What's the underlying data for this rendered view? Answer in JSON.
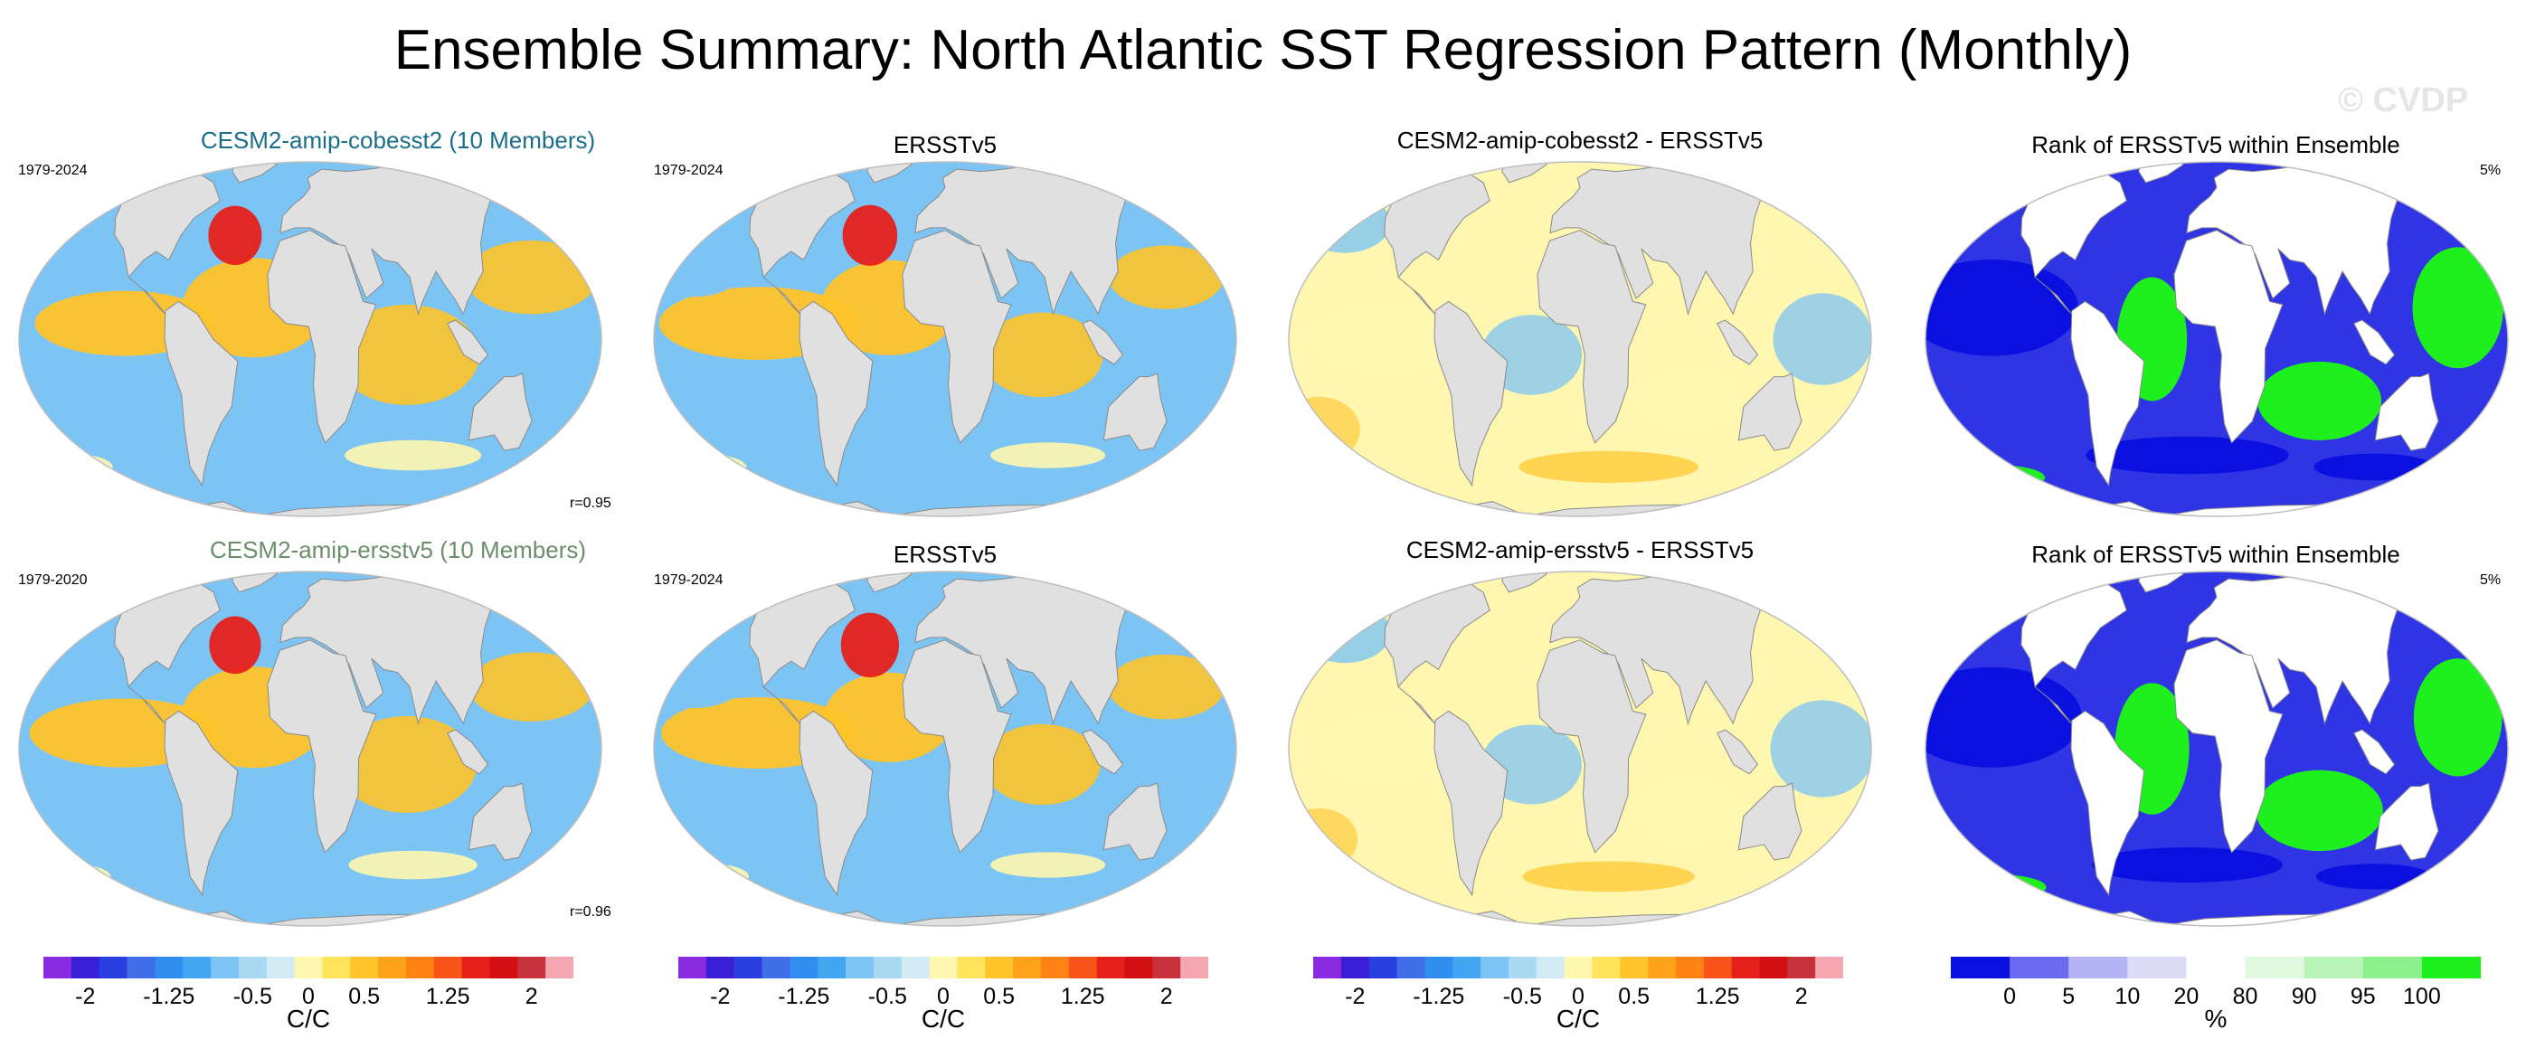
{
  "title": "Ensemble Summary: North Atlantic SST Regression Pattern (Monthly)",
  "watermark": "© CVDP",
  "rows": [
    {
      "panels": [
        {
          "title": "CESM2-amip-cobesst2 (10 Members)",
          "title_color": "#1a6e8a",
          "years": "1979-2024",
          "stat": "r=0.95",
          "kind": "ssta"
        },
        {
          "title": "ERSSTv5",
          "title_color": "#000000",
          "years": "1979-2024",
          "stat": "",
          "kind": "ssta"
        },
        {
          "title": "CESM2-amip-cobesst2 - ERSSTv5",
          "title_color": "#000000",
          "years": "",
          "stat": "",
          "kind": "diff"
        },
        {
          "title": "Rank of ERSSTv5 within Ensemble",
          "title_color": "#000000",
          "years": "",
          "percent": "5%",
          "kind": "rank"
        }
      ]
    },
    {
      "panels": [
        {
          "title": "CESM2-amip-ersstv5 (10 Members)",
          "title_color": "#6b8f6b",
          "years": "1979-2020",
          "stat": "r=0.96",
          "kind": "ssta"
        },
        {
          "title": "ERSSTv5",
          "title_color": "#000000",
          "years": "1979-2024",
          "stat": "",
          "kind": "ssta"
        },
        {
          "title": "CESM2-amip-ersstv5 - ERSSTv5",
          "title_color": "#000000",
          "years": "",
          "stat": "",
          "kind": "diff"
        },
        {
          "title": "Rank of ERSSTv5 within Ensemble",
          "title_color": "#000000",
          "years": "",
          "percent": "5%",
          "kind": "rank"
        }
      ]
    }
  ],
  "colorbars": [
    {
      "unit": "C/C",
      "ticks": [
        "-2",
        "-1.25",
        "-0.5",
        "0",
        "0.5",
        "1.25",
        "2"
      ],
      "colors": [
        "#8a2be2",
        "#3a1fd6",
        "#2a3fe0",
        "#3f6ee8",
        "#2f8ef0",
        "#43a6f2",
        "#7cc4f4",
        "#a8d8f2",
        "#d3ebf5",
        "#fff7b0",
        "#ffe45c",
        "#ffc42a",
        "#ffa41a",
        "#ff8214",
        "#f9541a",
        "#e6201a",
        "#d20f12",
        "#c8323c",
        "#f4a7b0"
      ]
    },
    {
      "unit": "C/C",
      "ticks": [
        "-2",
        "-1.25",
        "-0.5",
        "0",
        "0.5",
        "1.25",
        "2"
      ],
      "colors": [
        "#8a2be2",
        "#3a1fd6",
        "#2a3fe0",
        "#3f6ee8",
        "#2f8ef0",
        "#43a6f2",
        "#7cc4f4",
        "#a8d8f2",
        "#d3ebf5",
        "#fff7b0",
        "#ffe45c",
        "#ffc42a",
        "#ffa41a",
        "#ff8214",
        "#f9541a",
        "#e6201a",
        "#d20f12",
        "#c8323c",
        "#f4a7b0"
      ]
    },
    {
      "unit": "C/C",
      "ticks": [
        "-2",
        "-1.25",
        "-0.5",
        "0",
        "0.5",
        "1.25",
        "2"
      ],
      "colors": [
        "#8a2be2",
        "#3a1fd6",
        "#2a3fe0",
        "#3f6ee8",
        "#2f8ef0",
        "#43a6f2",
        "#7cc4f4",
        "#a8d8f2",
        "#d3ebf5",
        "#fff7b0",
        "#ffe45c",
        "#ffc42a",
        "#ffa41a",
        "#ff8214",
        "#f9541a",
        "#e6201a",
        "#d20f12",
        "#c8323c",
        "#f4a7b0"
      ]
    },
    {
      "unit": "%",
      "ticks": [
        "0",
        "5",
        "10",
        "20",
        "80",
        "90",
        "95",
        "100"
      ],
      "colors": [
        "#0a10e0",
        "#6a6af0",
        "#b4b4f4",
        "#dcdcf6",
        "#ffffff",
        "#e0f8e0",
        "#b8f4b8",
        "#8cf08c",
        "#1ef01e"
      ]
    }
  ],
  "colors": {
    "land": "#e0e0e0",
    "coast": "#8a8a8a",
    "rank_low": "#0a10e0",
    "rank_high": "#1ef01e",
    "ocean_warm": "#ffc42a",
    "ocean_hot": "#e6201a",
    "ocean_cool": "#7cc4f4",
    "ocean_cold": "#2f8ef0",
    "ocean_neutral": "#fff7b0"
  }
}
